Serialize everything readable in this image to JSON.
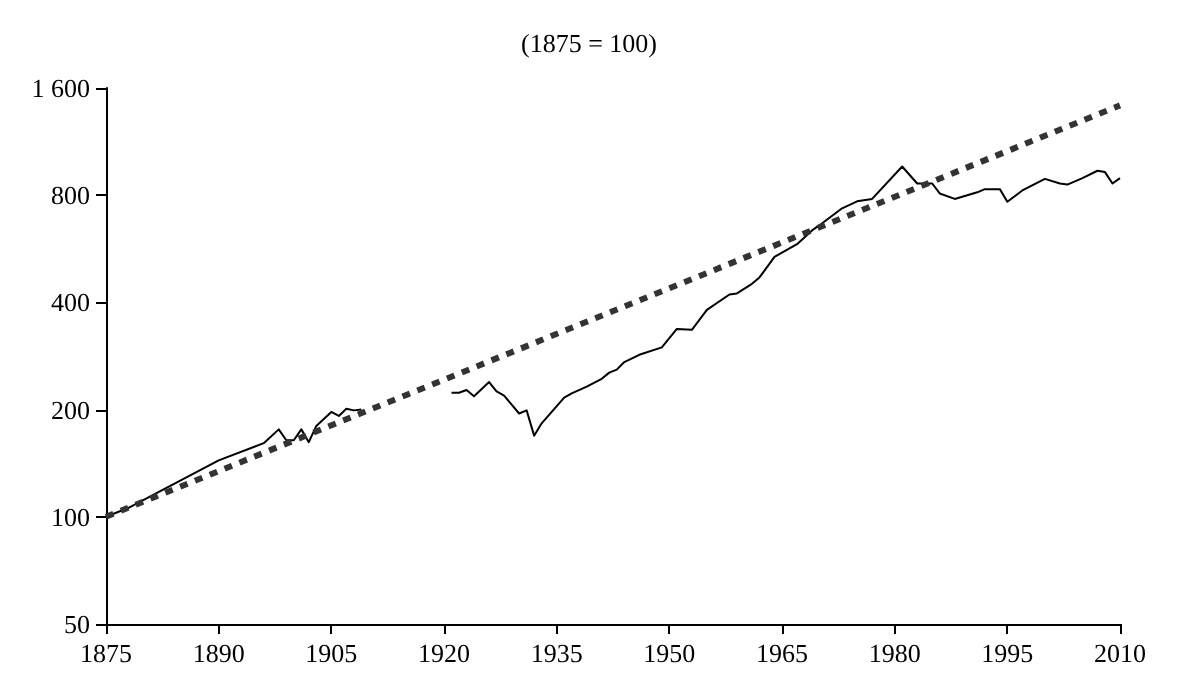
{
  "chart_data": {
    "type": "line",
    "title": "(1875 = 100)",
    "xlim": [
      1875,
      2010
    ],
    "xticks": [
      1875,
      1890,
      1905,
      1920,
      1935,
      1950,
      1965,
      1980,
      1995,
      2010
    ],
    "ylim": [
      50,
      1600
    ],
    "yticks": [
      50,
      100,
      200,
      400,
      800,
      {
        "value": 1600,
        "label": "1 600"
      }
    ],
    "log": "y",
    "grid": false,
    "marker": "none",
    "series": [
      {
        "color": "#000000",
        "line_style": "solid",
        "x": [
          1875,
          1878,
          1890,
          1896,
          1898,
          1899,
          1900,
          1901,
          1902,
          1903,
          1905,
          1906,
          1907,
          1908,
          1909,
          1915,
          1921,
          1922,
          1923,
          1924,
          1926,
          1927,
          1928,
          1930,
          1931,
          1932,
          1933,
          1936,
          1937,
          1939,
          1941,
          1942,
          1943,
          1944,
          1946,
          1949,
          1951,
          1953,
          1955,
          1958,
          1959,
          1961,
          1962,
          1964,
          1967,
          1969,
          1970,
          1973,
          1975,
          1977,
          1981,
          1983,
          1985,
          1986,
          1988,
          1991,
          1992,
          1994,
          1995,
          1997,
          2000,
          2002,
          2003,
          2005,
          2007,
          2008,
          2009,
          2010
        ],
        "values": [
          100,
          106,
          144,
          161,
          176,
          164,
          164,
          176,
          162,
          180,
          197,
          192,
          201,
          199,
          200,
          null,
          223,
          223,
          227,
          218,
          239,
          225,
          219,
          195,
          199,
          169,
          183,
          216,
          222,
          232,
          244,
          254,
          259,
          272,
          285,
          299,
          337,
          335,
          381,
          421,
          424,
          451,
          470,
          537,
          583,
          637,
          659,
          735,
          769,
          781,
          963,
          863,
          863,
          809,
          781,
          815,
          832,
          832,
          767,
          825,
          889,
          863,
          857,
          893,
          937,
          929,
          863,
          893
        ]
      },
      {
        "color": "#333333",
        "line_style": "dashed",
        "x": [
          1875,
          2010
        ],
        "values": [
          100,
          1430
        ]
      }
    ]
  }
}
